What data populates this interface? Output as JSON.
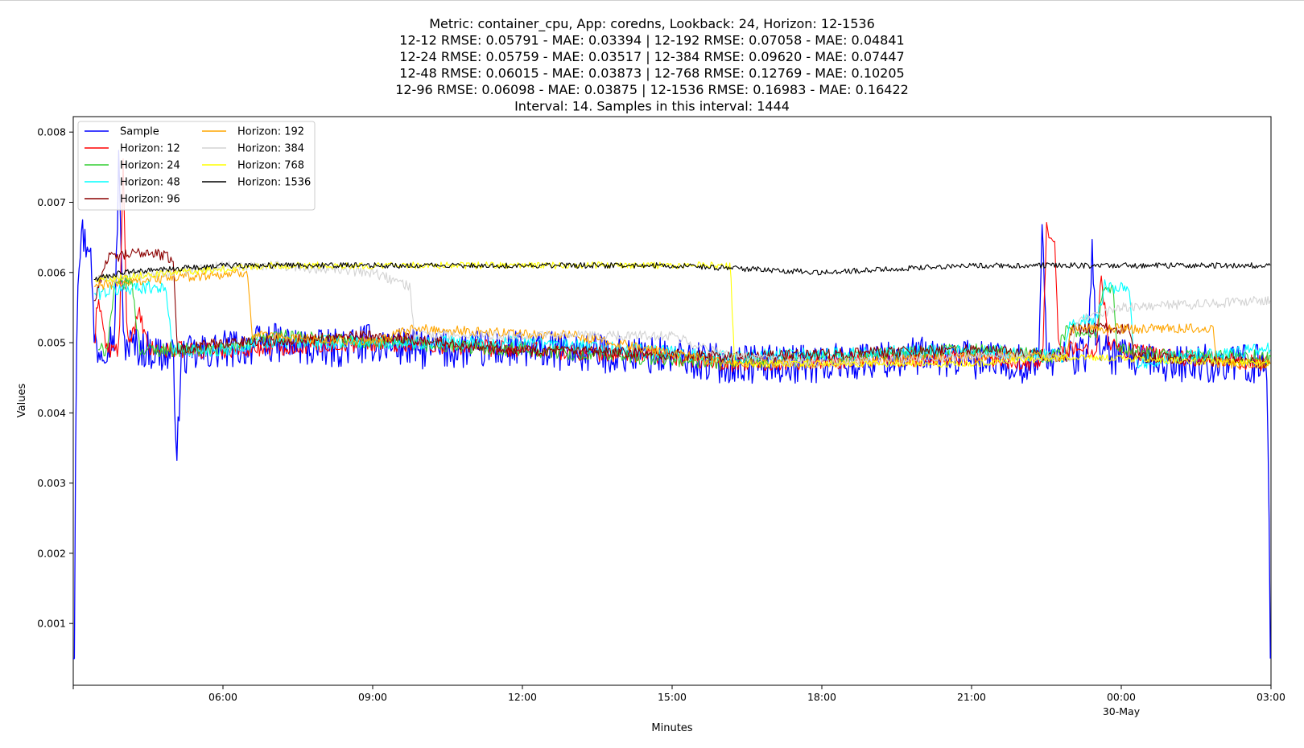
{
  "chart_data": {
    "type": "line",
    "title_lines": [
      "Metric: container_cpu, App: coredns, Lookback: 24, Horizon: 12-1536",
      "12-12 RMSE: 0.05791 - MAE: 0.03394 | 12-192 RMSE: 0.07058 - MAE: 0.04841",
      "12-24 RMSE: 0.05759 - MAE: 0.03517 | 12-384 RMSE: 0.09620 - MAE: 0.07447",
      "12-48 RMSE: 0.06015 - MAE: 0.03873 | 12-768 RMSE: 0.12769 - MAE: 0.10205",
      "12-96 RMSE: 0.06098 - MAE: 0.03875 | 12-1536 RMSE: 0.16983 - MAE: 0.16422",
      "Interval: 14. Samples in this interval: 1444"
    ],
    "xlabel": "Minutes",
    "ylabel": "Values",
    "x_axis": "time",
    "xlim": [
      "29-May 03:00",
      "30-May 03:00"
    ],
    "ylim": [
      0.00012,
      0.00822
    ],
    "x_ticks": [
      {
        "x": "29-May 06:00",
        "label": "06:00"
      },
      {
        "x": "29-May 09:00",
        "label": "09:00"
      },
      {
        "x": "29-May 12:00",
        "label": "12:00"
      },
      {
        "x": "29-May 15:00",
        "label": "15:00"
      },
      {
        "x": "29-May 18:00",
        "label": "18:00"
      },
      {
        "x": "29-May 21:00",
        "label": "21:00"
      },
      {
        "x": "30-May 00:00",
        "label": "00:00",
        "sublabel": "30-May"
      },
      {
        "x": "30-May 03:00",
        "label": "03:00"
      }
    ],
    "y_ticks": [
      {
        "y": 0.001,
        "label": "0.001"
      },
      {
        "y": 0.002,
        "label": "0.002"
      },
      {
        "y": 0.003,
        "label": "0.003"
      },
      {
        "y": 0.004,
        "label": "0.004"
      },
      {
        "y": 0.005,
        "label": "0.005"
      },
      {
        "y": 0.006,
        "label": "0.006"
      },
      {
        "y": 0.007,
        "label": "0.007"
      },
      {
        "y": 0.008,
        "label": "0.008"
      }
    ],
    "grid": false,
    "legend": {
      "position": "upper-left",
      "columns": 2
    },
    "series": [
      {
        "name": "Sample",
        "color": "#0000ff",
        "noise": 0.00028,
        "points": [
          [
            "29-May 03:00",
            0.0005
          ],
          [
            "29-May 03:05",
            0.006
          ],
          [
            "29-May 03:10",
            0.0066
          ],
          [
            "29-May 03:15",
            0.0064
          ],
          [
            "29-May 03:20",
            0.0065
          ],
          [
            "29-May 03:25",
            0.0051
          ],
          [
            "29-May 03:30",
            0.0049
          ],
          [
            "29-May 03:50",
            0.0051
          ],
          [
            "29-May 03:55",
            0.0078
          ],
          [
            "29-May 04:00",
            0.005
          ],
          [
            "29-May 04:30",
            0.0049
          ],
          [
            "29-May 05:00",
            0.0048
          ],
          [
            "29-May 05:05",
            0.0034
          ],
          [
            "29-May 05:10",
            0.0048
          ],
          [
            "29-May 06:00",
            0.0049
          ],
          [
            "29-May 07:00",
            0.005
          ],
          [
            "29-May 08:00",
            0.0049
          ],
          [
            "29-May 09:00",
            0.005
          ],
          [
            "29-May 10:00",
            0.0049
          ],
          [
            "29-May 12:00",
            0.0049
          ],
          [
            "29-May 15:00",
            0.0048
          ],
          [
            "29-May 16:00",
            0.0047
          ],
          [
            "29-May 18:00",
            0.0047
          ],
          [
            "29-May 20:00",
            0.0048
          ],
          [
            "29-May 22:00",
            0.0047
          ],
          [
            "29-May 22:20",
            0.0047
          ],
          [
            "29-May 22:25",
            0.0066
          ],
          [
            "29-May 22:30",
            0.0048
          ],
          [
            "29-May 23:20",
            0.0048
          ],
          [
            "29-May 23:25",
            0.0063
          ],
          [
            "29-May 23:30",
            0.005
          ],
          [
            "29-May 23:50",
            0.0048
          ],
          [
            "30-May 00:30",
            0.0047
          ],
          [
            "30-May 02:55",
            0.0047
          ],
          [
            "30-May 03:00",
            0.0005
          ]
        ]
      },
      {
        "name": "Horizon: 12",
        "color": "#ff0000",
        "noise": 0.00012,
        "points": [
          [
            "29-May 03:25",
            0.005
          ],
          [
            "29-May 03:30",
            0.0057
          ],
          [
            "29-May 03:40",
            0.0049
          ],
          [
            "29-May 03:55",
            0.0049
          ],
          [
            "29-May 04:00",
            0.0075
          ],
          [
            "29-May 04:05",
            0.005
          ],
          [
            "29-May 04:20",
            0.0054
          ],
          [
            "29-May 04:30",
            0.0049
          ],
          [
            "29-May 06:00",
            0.0049
          ],
          [
            "29-May 09:00",
            0.005
          ],
          [
            "29-May 12:00",
            0.0049
          ],
          [
            "29-May 15:00",
            0.0048
          ],
          [
            "29-May 16:10",
            0.0047
          ],
          [
            "29-May 21:00",
            0.0048
          ],
          [
            "29-May 22:25",
            0.0047
          ],
          [
            "29-May 22:30",
            0.0066
          ],
          [
            "29-May 22:40",
            0.0065
          ],
          [
            "29-May 22:45",
            0.0049
          ],
          [
            "29-May 23:30",
            0.0049
          ],
          [
            "29-May 23:35",
            0.006
          ],
          [
            "29-May 23:45",
            0.005
          ],
          [
            "30-May 00:00",
            0.0049
          ],
          [
            "30-May 01:00",
            0.0048
          ],
          [
            "30-May 03:00",
            0.0047
          ]
        ]
      },
      {
        "name": "Horizon: 24",
        "color": "#32cd32",
        "noise": 0.0001,
        "points": [
          [
            "29-May 03:30",
            0.0049
          ],
          [
            "29-May 03:40",
            0.0049
          ],
          [
            "29-May 03:50",
            0.0058
          ],
          [
            "29-May 04:10",
            0.0059
          ],
          [
            "29-May 04:20",
            0.0049
          ],
          [
            "29-May 04:40",
            0.0049
          ],
          [
            "29-May 05:00",
            0.0049
          ],
          [
            "29-May 06:00",
            0.0049
          ],
          [
            "29-May 07:00",
            0.0051
          ],
          [
            "29-May 09:00",
            0.005
          ],
          [
            "29-May 12:00",
            0.0049
          ],
          [
            "29-May 16:10",
            0.0047
          ],
          [
            "29-May 21:00",
            0.0049
          ],
          [
            "29-May 22:40",
            0.0048
          ],
          [
            "29-May 22:55",
            0.0052
          ],
          [
            "29-May 23:30",
            0.0051
          ],
          [
            "29-May 23:40",
            0.0058
          ],
          [
            "29-May 23:50",
            0.0058
          ],
          [
            "29-May 23:55",
            0.0049
          ],
          [
            "30-May 01:00",
            0.0048
          ],
          [
            "30-May 03:00",
            0.0048
          ]
        ]
      },
      {
        "name": "Horizon: 48",
        "color": "#00ffff",
        "noise": 0.0001,
        "points": [
          [
            "29-May 03:25",
            0.0057
          ],
          [
            "29-May 04:20",
            0.0058
          ],
          [
            "29-May 04:50",
            0.0058
          ],
          [
            "29-May 05:00",
            0.0049
          ],
          [
            "29-May 06:00",
            0.0049
          ],
          [
            "29-May 07:00",
            0.005
          ],
          [
            "29-May 09:00",
            0.005
          ],
          [
            "29-May 12:00",
            0.005
          ],
          [
            "29-May 16:10",
            0.0048
          ],
          [
            "29-May 21:00",
            0.0049
          ],
          [
            "29-May 22:50",
            0.0048
          ],
          [
            "29-May 23:00",
            0.0053
          ],
          [
            "29-May 23:30",
            0.0053
          ],
          [
            "29-May 23:40",
            0.0058
          ],
          [
            "30-May 00:10",
            0.0058
          ],
          [
            "30-May 00:15",
            0.0047
          ],
          [
            "30-May 01:00",
            0.0048
          ],
          [
            "30-May 03:00",
            0.0049
          ]
        ]
      },
      {
        "name": "Horizon: 96",
        "color": "#8b0000",
        "noise": 8e-05,
        "points": [
          [
            "29-May 03:25",
            0.0056
          ],
          [
            "29-May 03:40",
            0.0062
          ],
          [
            "29-May 04:30",
            0.0063
          ],
          [
            "29-May 05:00",
            0.0062
          ],
          [
            "29-May 05:05",
            0.0049
          ],
          [
            "29-May 06:00",
            0.005
          ],
          [
            "29-May 09:00",
            0.0051
          ],
          [
            "29-May 12:00",
            0.0049
          ],
          [
            "29-May 16:10",
            0.0048
          ],
          [
            "29-May 21:00",
            0.0049
          ],
          [
            "29-May 22:55",
            0.0048
          ],
          [
            "29-May 23:00",
            0.0052
          ],
          [
            "30-May 00:10",
            0.0052
          ],
          [
            "30-May 00:15",
            0.0048
          ],
          [
            "30-May 03:00",
            0.0047
          ]
        ]
      },
      {
        "name": "Horizon: 192",
        "color": "#ffa500",
        "noise": 7e-05,
        "points": [
          [
            "29-May 03:25",
            0.0058
          ],
          [
            "29-May 04:30",
            0.0059
          ],
          [
            "29-May 06:30",
            0.006
          ],
          [
            "29-May 06:35",
            0.0051
          ],
          [
            "29-May 09:00",
            0.005
          ],
          [
            "29-May 09:50",
            0.0052
          ],
          [
            "29-May 13:00",
            0.0051
          ],
          [
            "29-May 16:10",
            0.0047
          ],
          [
            "29-May 18:00",
            0.0047
          ],
          [
            "29-May 21:00",
            0.0048
          ],
          [
            "29-May 22:55",
            0.0048
          ],
          [
            "29-May 23:00",
            0.0052
          ],
          [
            "30-May 01:00",
            0.0052
          ],
          [
            "30-May 01:50",
            0.0052
          ],
          [
            "30-May 01:55",
            0.0047
          ],
          [
            "30-May 03:00",
            0.0047
          ]
        ]
      },
      {
        "name": "Horizon: 384",
        "color": "#d3d3d3",
        "noise": 7e-05,
        "points": [
          [
            "29-May 03:25",
            0.0059
          ],
          [
            "29-May 05:00",
            0.006
          ],
          [
            "29-May 06:00",
            0.0061
          ],
          [
            "29-May 07:00",
            0.0061
          ],
          [
            "29-May 09:00",
            0.006
          ],
          [
            "29-May 09:45",
            0.0058
          ],
          [
            "29-May 09:50",
            0.0051
          ],
          [
            "29-May 12:00",
            0.0051
          ],
          [
            "29-May 15:00",
            0.0051
          ],
          [
            "29-May 16:10",
            0.0048
          ],
          [
            "29-May 18:00",
            0.0047
          ],
          [
            "29-May 21:00",
            0.0048
          ],
          [
            "29-May 23:00",
            0.0048
          ],
          [
            "29-May 23:05",
            0.0053
          ],
          [
            "30-May 00:00",
            0.0055
          ],
          [
            "30-May 03:00",
            0.0056
          ]
        ]
      },
      {
        "name": "Horizon: 768",
        "color": "#ffff00",
        "noise": 5e-05,
        "points": [
          [
            "29-May 03:25",
            0.0059
          ],
          [
            "29-May 05:00",
            0.006
          ],
          [
            "29-May 07:00",
            0.0061
          ],
          [
            "29-May 09:00",
            0.0061
          ],
          [
            "29-May 12:00",
            0.0061
          ],
          [
            "29-May 16:10",
            0.0061
          ],
          [
            "29-May 16:15",
            0.0047
          ],
          [
            "29-May 18:00",
            0.0047
          ],
          [
            "29-May 21:00",
            0.0047
          ],
          [
            "29-May 23:00",
            0.0048
          ],
          [
            "30-May 03:00",
            0.0047
          ]
        ]
      },
      {
        "name": "Horizon: 1536",
        "color": "#000000",
        "noise": 4e-05,
        "points": [
          [
            "29-May 03:25",
            0.0059
          ],
          [
            "29-May 04:00",
            0.006
          ],
          [
            "29-May 06:00",
            0.0061
          ],
          [
            "29-May 09:00",
            0.0061
          ],
          [
            "29-May 12:00",
            0.0061
          ],
          [
            "29-May 15:00",
            0.0061
          ],
          [
            "29-May 18:00",
            0.006
          ],
          [
            "29-May 21:00",
            0.0061
          ],
          [
            "30-May 00:00",
            0.0061
          ],
          [
            "30-May 03:00",
            0.0061
          ]
        ]
      }
    ]
  }
}
